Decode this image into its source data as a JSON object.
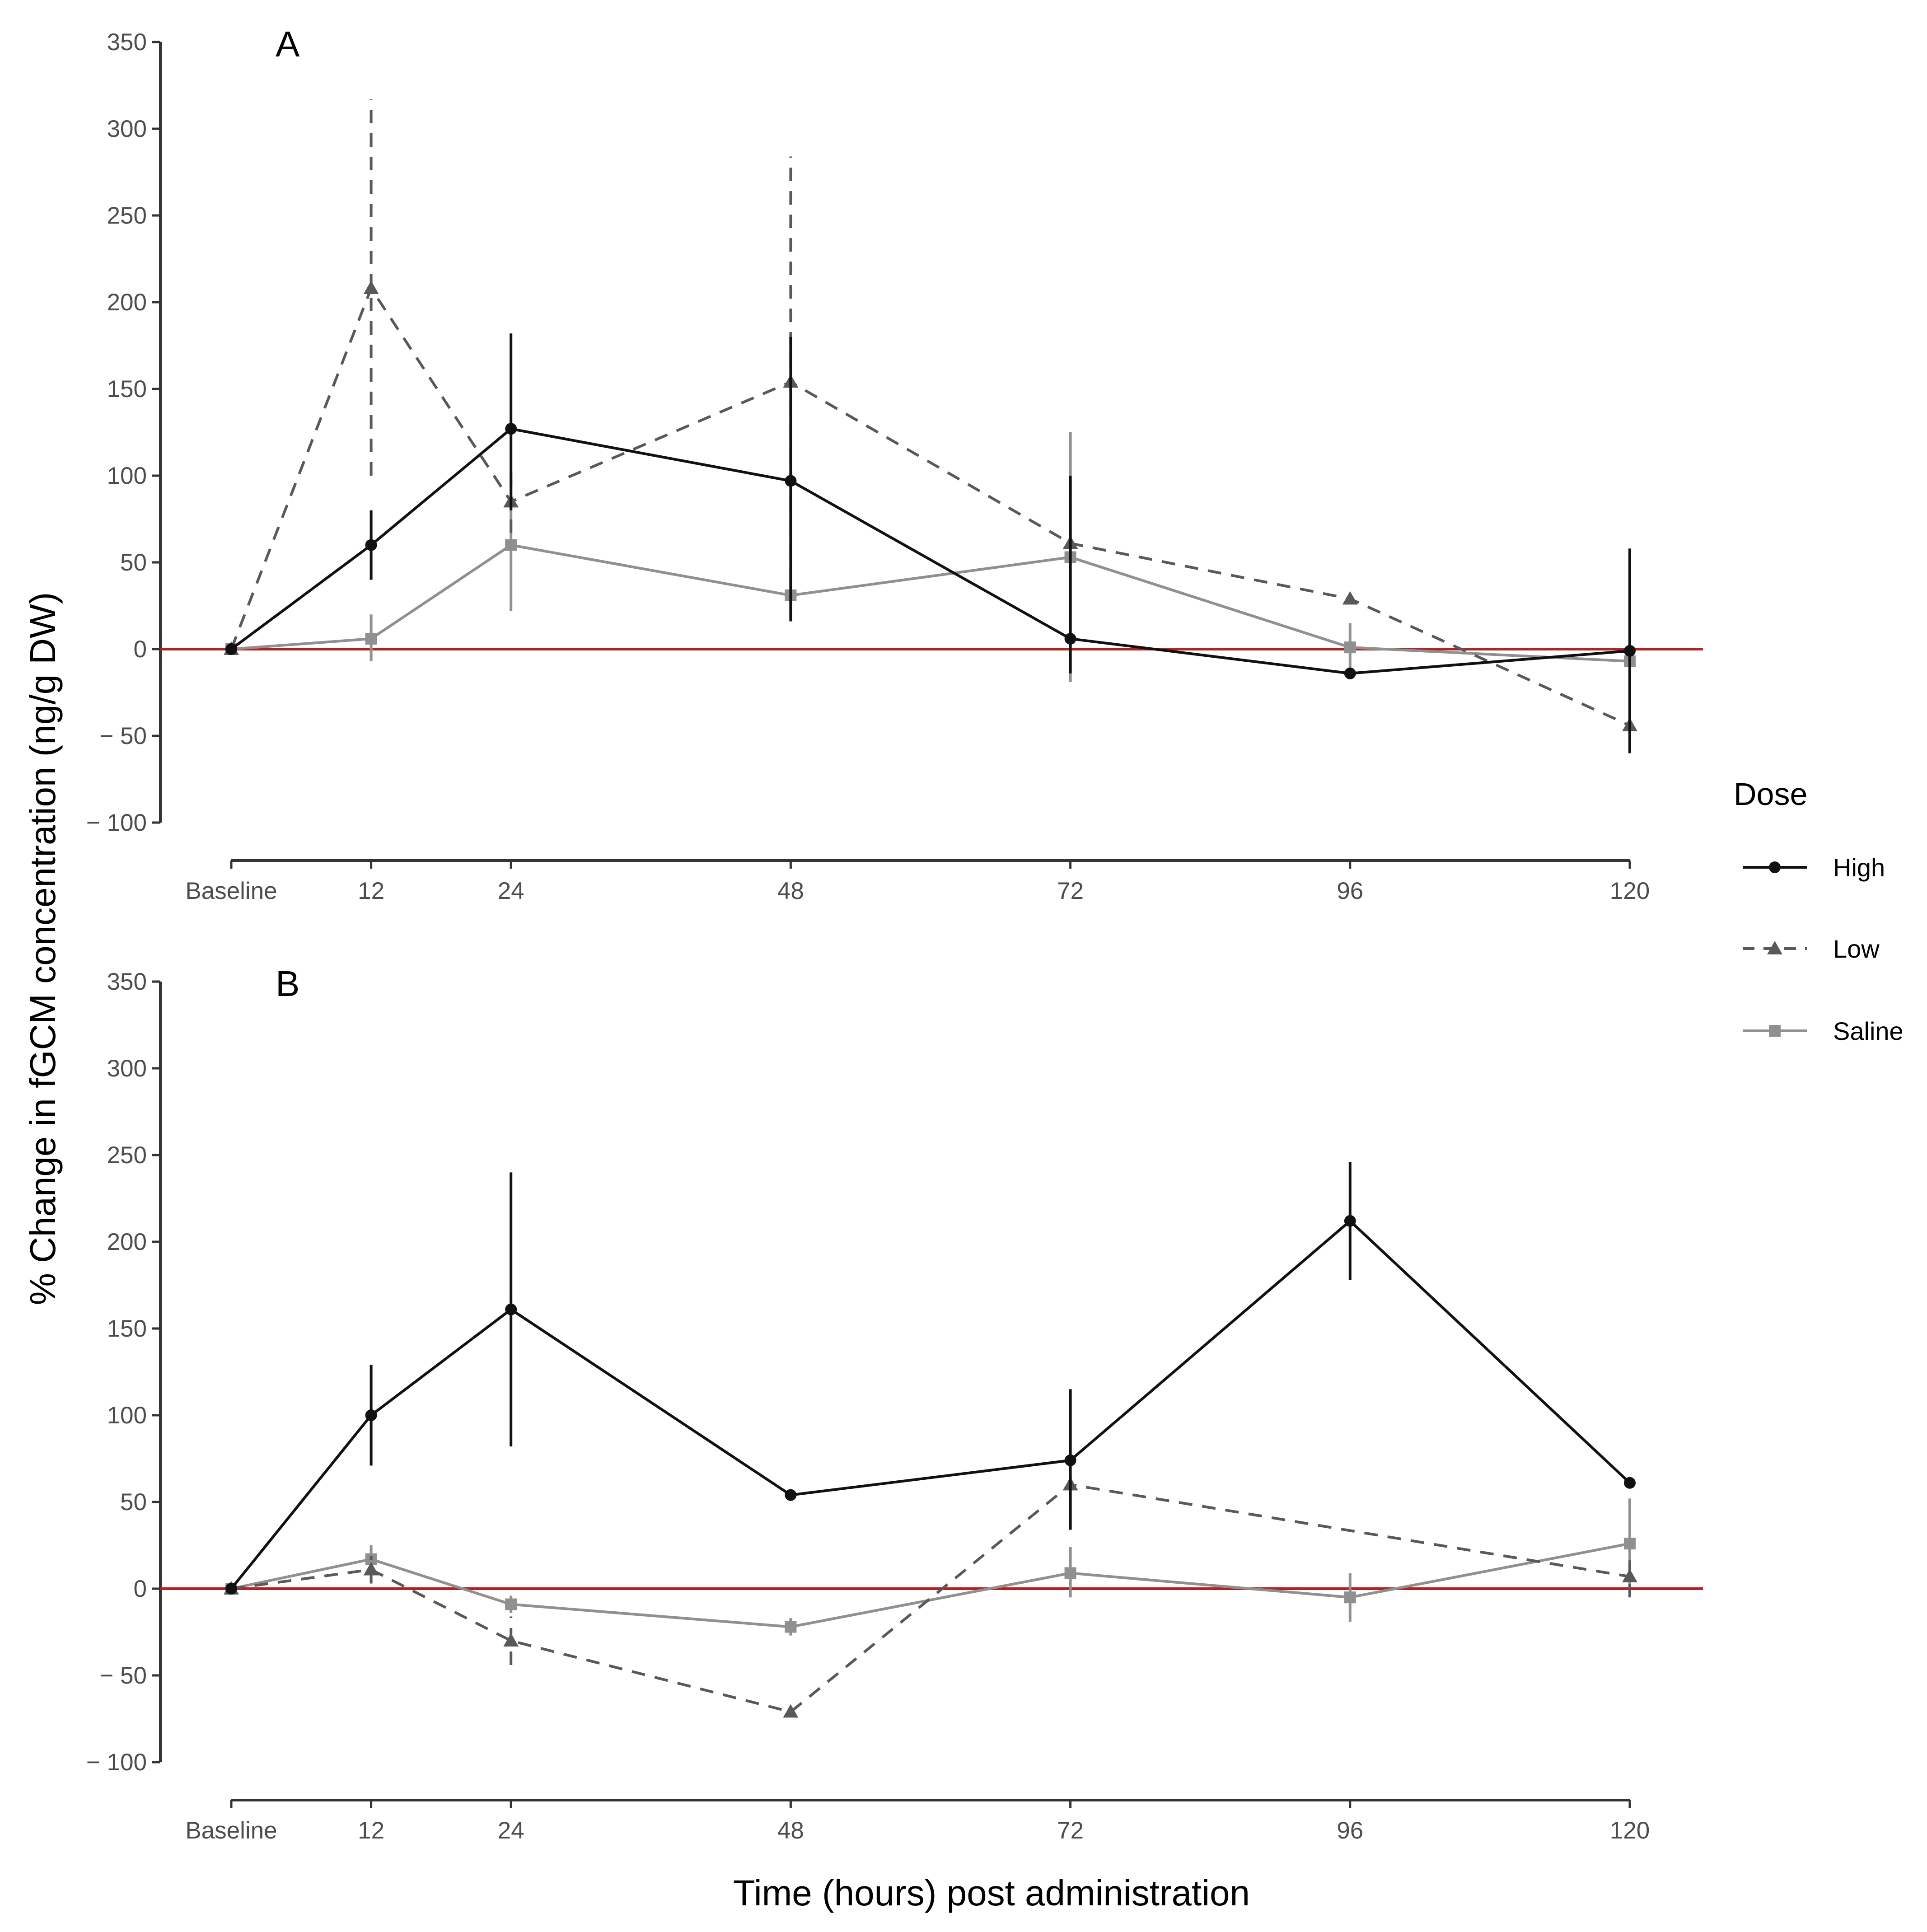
{
  "chart_data": {
    "type": "line",
    "ylabel": "% Change in fGCM concentration (ng/g DW)",
    "xlabel": "Time (hours) post administration",
    "x_ticks": [
      {
        "label": "Baseline",
        "value": 0
      },
      {
        "label": "12",
        "value": 12
      },
      {
        "label": "24",
        "value": 24
      },
      {
        "label": "48",
        "value": 48
      },
      {
        "label": "72",
        "value": 72
      },
      {
        "label": "96",
        "value": 96
      },
      {
        "label": "120",
        "value": 120
      }
    ],
    "xlim": [
      -2,
      126
    ],
    "y_ticks": [
      {
        "label": "350",
        "value": 350
      },
      {
        "label": "300",
        "value": 300
      },
      {
        "label": "250",
        "value": 250
      },
      {
        "label": "200",
        "value": 200
      },
      {
        "label": "150",
        "value": 150
      },
      {
        "label": "100",
        "value": 100
      },
      {
        "label": "50",
        "value": 50
      },
      {
        "label": "0",
        "value": 0
      },
      {
        "label": "− 50",
        "value": -50
      },
      {
        "label": "− 100",
        "value": -100
      }
    ],
    "ylim": [
      -100,
      350
    ],
    "reference_line": {
      "y": 0,
      "color": "#b22222"
    },
    "legend": {
      "title": "Dose",
      "position": "right",
      "entries": [
        {
          "key": "high",
          "label": "High"
        },
        {
          "key": "low",
          "label": "Low"
        },
        {
          "key": "saline",
          "label": "Saline"
        }
      ]
    },
    "series_style": {
      "high": {
        "color": "#111111",
        "dash": "solid",
        "marker": "circle"
      },
      "low": {
        "color": "#595959",
        "dash": "dashed",
        "marker": "triangle"
      },
      "saline": {
        "color": "#909090",
        "dash": "solid",
        "marker": "square"
      }
    },
    "panels": [
      {
        "label": "A",
        "series": [
          {
            "key": "high",
            "x": [
              0,
              12,
              24,
              48,
              72,
              96,
              120
            ],
            "y": [
              0,
              60,
              127,
              97,
              6,
              -14,
              -1
            ],
            "err_low": [
              0,
              40,
              80,
              16,
              -14,
              -14,
              -60
            ],
            "err_high": [
              0,
              80,
              182,
              180,
              100,
              -14,
              58
            ]
          },
          {
            "key": "low",
            "x": [
              0,
              12,
              24,
              48,
              72,
              96,
              120
            ],
            "y": [
              0,
              208,
              85,
              154,
              61,
              29,
              -44
            ],
            "err_low": [
              0,
              100,
              67,
              26,
              22,
              29,
              -60
            ],
            "err_high": [
              0,
              317,
              103,
              284,
              100,
              29,
              -28
            ]
          },
          {
            "key": "saline",
            "x": [
              0,
              12,
              24,
              48,
              72,
              96,
              120
            ],
            "y": [
              0,
              6,
              60,
              31,
              53,
              1,
              -7
            ],
            "err_low": [
              0,
              -7,
              22,
              18,
              -19,
              -14,
              -14
            ],
            "err_high": [
              0,
              20,
              98,
              44,
              125,
              15,
              0
            ]
          }
        ]
      },
      {
        "label": "B",
        "series": [
          {
            "key": "high",
            "x": [
              0,
              12,
              24,
              48,
              72,
              96,
              120
            ],
            "y": [
              0,
              100,
              161,
              54,
              74,
              212,
              61
            ],
            "err_low": [
              0,
              71,
              82,
              54,
              34,
              178,
              61
            ],
            "err_high": [
              0,
              129,
              240,
              54,
              115,
              246,
              61
            ]
          },
          {
            "key": "low",
            "x": [
              0,
              12,
              24,
              48,
              72,
              96,
              120
            ],
            "y": [
              0,
              11,
              -30,
              -71,
              60,
              null,
              7
            ],
            "err_low": [
              0,
              3,
              -44,
              -71,
              57,
              null,
              -5
            ],
            "err_high": [
              0,
              19,
              -16,
              -71,
              63,
              null,
              19
            ]
          },
          {
            "key": "saline",
            "x": [
              0,
              12,
              24,
              48,
              72,
              96,
              120
            ],
            "y": [
              0,
              17,
              -9,
              -22,
              9,
              -5,
              26
            ],
            "err_low": [
              0,
              10,
              -14,
              -27,
              -5,
              -19,
              0
            ],
            "err_high": [
              0,
              25,
              -4,
              -17,
              24,
              9,
              52
            ]
          }
        ]
      }
    ]
  }
}
